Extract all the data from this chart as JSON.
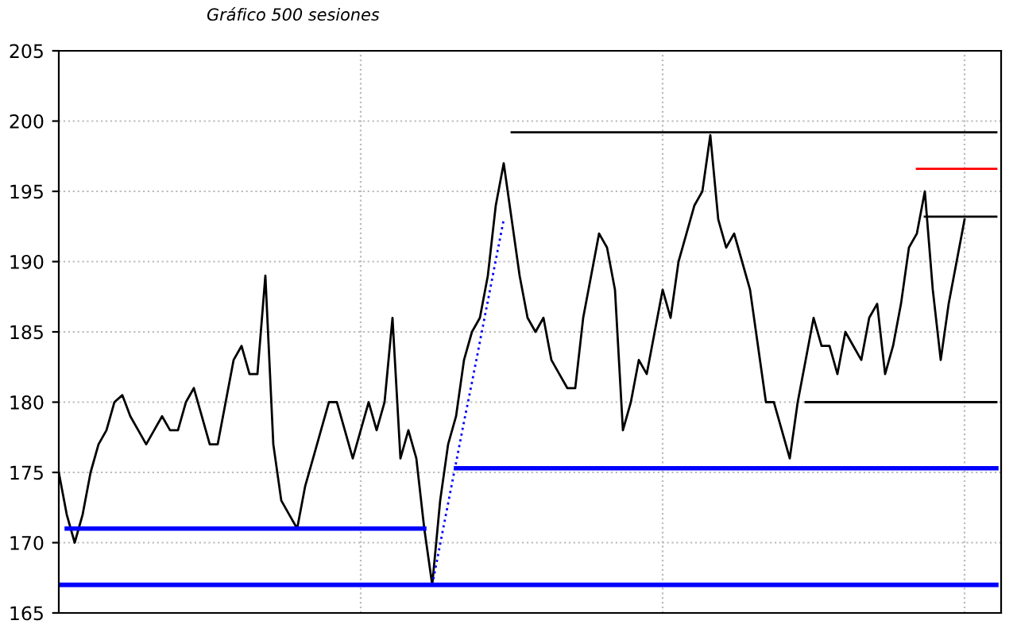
{
  "chart_data": {
    "type": "line",
    "subtitle": "Gráfico 500 sesiones",
    "categories": [
      null,
      null,
      null,
      null,
      null,
      null,
      null,
      null,
      null,
      null,
      null,
      null,
      null,
      null,
      null,
      null,
      null,
      null,
      null,
      null,
      null,
      null,
      null,
      null,
      null,
      null,
      null,
      null,
      null,
      null,
      null,
      null,
      null,
      null,
      null,
      null,
      null,
      null,
      null,
      null,
      null,
      null,
      null,
      null,
      null,
      null,
      null,
      null,
      null,
      null,
      null,
      null,
      null,
      null,
      null,
      null,
      null,
      null,
      null,
      null,
      null,
      null,
      null,
      null,
      null,
      null,
      null,
      null,
      null,
      null,
      null,
      null,
      null,
      null,
      null,
      null,
      null,
      null,
      null,
      null,
      null,
      null,
      null,
      null,
      null,
      null,
      null,
      null,
      null,
      null,
      null,
      null,
      null,
      null,
      null,
      null,
      null,
      null,
      null,
      null,
      null,
      null,
      null,
      null,
      null,
      null,
      null,
      null,
      null,
      null,
      null,
      null,
      null,
      null,
      null,
      null,
      null,
      null,
      null
    ],
    "ylim": [
      165,
      205
    ],
    "yticks": [
      165,
      170,
      175,
      180,
      185,
      190,
      195,
      200,
      205
    ],
    "grid": true,
    "series": [
      {
        "color": "#000000",
        "values": [
          175,
          172,
          170,
          172,
          175,
          177,
          178,
          180,
          180.5,
          179,
          178,
          177,
          178,
          179,
          178,
          178,
          180,
          181,
          179,
          177,
          177,
          180,
          183,
          184,
          182,
          182,
          189,
          177,
          173,
          172,
          171,
          174,
          176,
          178,
          180,
          180,
          178,
          176,
          178,
          180,
          178,
          180,
          186,
          176,
          178,
          176,
          171,
          167,
          173,
          177,
          179,
          183,
          185,
          186,
          189,
          194,
          197,
          193,
          189,
          186,
          185,
          186,
          183,
          182,
          181,
          181,
          186,
          189,
          192,
          191,
          188,
          178,
          180,
          183,
          182,
          185,
          188,
          186,
          190,
          192,
          194,
          195,
          199,
          193,
          191,
          192,
          190,
          188,
          184,
          180,
          180,
          178,
          176,
          180,
          183,
          186,
          184,
          184,
          182,
          185,
          184,
          183,
          186,
          187,
          182,
          184,
          187,
          191,
          192,
          195,
          188,
          183,
          187,
          190,
          193,
          null,
          null,
          null,
          null
        ]
      },
      {
        "color": "#0000ff",
        "values": [
          null,
          171,
          171,
          171,
          171,
          171,
          171,
          171,
          171,
          171,
          171,
          171,
          171,
          171,
          171,
          171,
          171,
          171,
          171,
          171,
          171,
          171,
          171,
          171,
          171,
          171,
          171,
          171,
          171,
          171,
          171,
          171,
          171,
          171,
          171,
          171,
          171,
          171,
          171,
          171,
          171,
          171,
          171,
          171,
          171,
          171,
          171,
          null,
          null,
          null,
          null,
          null,
          null,
          null,
          null,
          null,
          null,
          null,
          null,
          null,
          null,
          null,
          null,
          null,
          null,
          null,
          null,
          null,
          null,
          null,
          null,
          null,
          null,
          null,
          null,
          null,
          null,
          null,
          null,
          null,
          null,
          null,
          null,
          null,
          null,
          null,
          null,
          null,
          null,
          null,
          null,
          null,
          null,
          null,
          null,
          null,
          null,
          null,
          null,
          null,
          null,
          null,
          null,
          null,
          null,
          null,
          null,
          null,
          null,
          null,
          null,
          null,
          null,
          null,
          null,
          null,
          null,
          null,
          null
        ]
      },
      {
        "color": "#0000ff",
        "values": [
          167,
          167,
          167,
          167,
          167,
          167,
          167,
          167,
          167,
          167,
          167,
          167,
          167,
          167,
          167,
          167,
          167,
          167,
          167,
          167,
          167,
          167,
          167,
          167,
          167,
          167,
          167,
          167,
          167,
          167,
          167,
          167,
          167,
          167,
          167,
          167,
          167,
          167,
          167,
          167,
          167,
          167,
          167,
          167,
          167,
          167,
          167,
          167,
          167,
          167,
          167,
          167,
          167,
          167,
          167,
          167,
          167,
          167,
          167,
          167,
          167,
          167,
          167,
          167,
          167,
          167,
          167,
          167,
          167,
          167,
          167,
          167,
          167,
          167,
          167,
          167,
          167,
          167,
          167,
          167,
          167,
          167,
          167,
          167,
          167,
          167,
          167,
          167,
          167,
          167,
          167,
          167,
          167,
          167,
          167,
          167,
          167,
          167,
          167,
          167,
          167,
          167,
          167,
          167,
          167,
          167,
          167,
          167,
          167,
          167,
          167,
          167,
          167,
          167,
          167,
          167,
          167,
          167,
          167
        ]
      },
      {
        "color": "#0000ff",
        "values": [
          null,
          null,
          null,
          null,
          null,
          null,
          null,
          null,
          null,
          null,
          null,
          null,
          null,
          null,
          null,
          null,
          null,
          null,
          null,
          null,
          null,
          null,
          null,
          null,
          null,
          null,
          null,
          null,
          null,
          null,
          null,
          null,
          null,
          null,
          null,
          null,
          null,
          null,
          null,
          null,
          null,
          null,
          null,
          null,
          null,
          null,
          null,
          null,
          null,
          null,
          175.3,
          175.3,
          175.3,
          175.3,
          175.3,
          175.3,
          175.3,
          175.3,
          175.3,
          175.3,
          175.3,
          175.3,
          175.3,
          175.3,
          175.3,
          175.3,
          175.3,
          175.3,
          175.3,
          175.3,
          175.3,
          175.3,
          175.3,
          175.3,
          175.3,
          175.3,
          175.3,
          175.3,
          175.3,
          175.3,
          175.3,
          175.3,
          175.3,
          175.3,
          175.3,
          175.3,
          175.3,
          175.3,
          175.3,
          175.3,
          175.3,
          175.3,
          175.3,
          175.3,
          175.3,
          175.3,
          175.3,
          175.3,
          175.3,
          175.3,
          175.3,
          175.3,
          175.3,
          175.3,
          175.3,
          175.3,
          175.3,
          175.3,
          175.3,
          175.3,
          175.3,
          175.3,
          175.3,
          175.3,
          175.3,
          175.3,
          175.3,
          175.3,
          175.3
        ]
      },
      {
        "color": "#0000ff",
        "line_style": "dotted",
        "values": [
          null,
          null,
          null,
          null,
          null,
          null,
          null,
          null,
          null,
          null,
          null,
          null,
          null,
          null,
          null,
          null,
          null,
          null,
          null,
          null,
          null,
          null,
          null,
          null,
          null,
          null,
          null,
          null,
          null,
          null,
          null,
          null,
          null,
          null,
          null,
          null,
          null,
          null,
          null,
          null,
          null,
          null,
          null,
          null,
          null,
          null,
          null,
          167,
          169.9,
          172.8,
          175.7,
          178.6,
          181.4,
          184.3,
          187.2,
          190.1,
          193,
          null,
          null,
          null,
          null,
          null,
          null,
          null,
          null,
          null,
          null,
          null,
          null,
          null,
          null,
          null,
          null,
          null,
          null,
          null,
          null,
          null,
          null,
          null,
          null,
          null,
          null,
          null,
          null,
          null,
          null,
          null,
          null,
          null,
          null,
          null,
          null,
          null,
          null,
          null,
          null,
          null,
          null,
          null,
          null,
          null,
          null,
          null,
          null,
          null,
          null,
          null,
          null,
          null,
          null,
          null,
          null,
          null,
          null,
          null,
          null,
          null,
          null
        ]
      },
      {
        "color": "#000000",
        "values": [
          null,
          null,
          null,
          null,
          null,
          null,
          null,
          null,
          null,
          null,
          null,
          null,
          null,
          null,
          null,
          null,
          null,
          null,
          null,
          null,
          null,
          null,
          null,
          null,
          null,
          null,
          null,
          null,
          null,
          null,
          null,
          null,
          null,
          null,
          null,
          null,
          null,
          null,
          null,
          null,
          null,
          null,
          null,
          null,
          null,
          null,
          null,
          null,
          null,
          null,
          null,
          null,
          null,
          null,
          null,
          null,
          null,
          199.2,
          199.2,
          199.2,
          199.2,
          199.2,
          199.2,
          199.2,
          199.2,
          199.2,
          199.2,
          199.2,
          199.2,
          199.2,
          199.2,
          199.2,
          199.2,
          199.2,
          199.2,
          199.2,
          199.2,
          199.2,
          199.2,
          199.2,
          199.2,
          199.2,
          199.2,
          199.2,
          199.2,
          199.2,
          199.2,
          199.2,
          199.2,
          199.2,
          199.2,
          199.2,
          199.2,
          199.2,
          199.2,
          199.2,
          199.2,
          199.2,
          199.2,
          199.2,
          199.2,
          199.2,
          199.2,
          199.2,
          199.2,
          199.2,
          199.2,
          199.2,
          199.2,
          199.2,
          199.2,
          199.2,
          199.2,
          199.2,
          199.2,
          199.2,
          199.2,
          199.2,
          199.2
        ]
      },
      {
        "color": "#ff0000",
        "values": [
          null,
          null,
          null,
          null,
          null,
          null,
          null,
          null,
          null,
          null,
          null,
          null,
          null,
          null,
          null,
          null,
          null,
          null,
          null,
          null,
          null,
          null,
          null,
          null,
          null,
          null,
          null,
          null,
          null,
          null,
          null,
          null,
          null,
          null,
          null,
          null,
          null,
          null,
          null,
          null,
          null,
          null,
          null,
          null,
          null,
          null,
          null,
          null,
          null,
          null,
          null,
          null,
          null,
          null,
          null,
          null,
          null,
          null,
          null,
          null,
          null,
          null,
          null,
          null,
          null,
          null,
          null,
          null,
          null,
          null,
          null,
          null,
          null,
          null,
          null,
          null,
          null,
          null,
          null,
          null,
          null,
          null,
          null,
          null,
          null,
          null,
          null,
          null,
          null,
          null,
          null,
          null,
          null,
          null,
          null,
          null,
          null,
          null,
          null,
          null,
          null,
          null,
          null,
          null,
          null,
          null,
          null,
          null,
          196.6,
          196.6,
          196.6,
          196.6,
          196.6,
          196.6,
          196.6,
          196.6,
          196.6,
          196.6,
          196.6
        ]
      },
      {
        "color": "#000000",
        "values": [
          null,
          null,
          null,
          null,
          null,
          null,
          null,
          null,
          null,
          null,
          null,
          null,
          null,
          null,
          null,
          null,
          null,
          null,
          null,
          null,
          null,
          null,
          null,
          null,
          null,
          null,
          null,
          null,
          null,
          null,
          null,
          null,
          null,
          null,
          null,
          null,
          null,
          null,
          null,
          null,
          null,
          null,
          null,
          null,
          null,
          null,
          null,
          null,
          null,
          null,
          null,
          null,
          null,
          null,
          null,
          null,
          null,
          null,
          null,
          null,
          null,
          null,
          null,
          null,
          null,
          null,
          null,
          null,
          null,
          null,
          null,
          null,
          null,
          null,
          null,
          null,
          null,
          null,
          null,
          null,
          null,
          null,
          null,
          null,
          null,
          null,
          null,
          null,
          null,
          null,
          null,
          null,
          null,
          null,
          null,
          null,
          null,
          null,
          null,
          null,
          null,
          null,
          null,
          null,
          null,
          null,
          null,
          null,
          null,
          193.2,
          193.2,
          193.2,
          193.2,
          193.2,
          193.2,
          193.2,
          193.2,
          193.2,
          193.2
        ]
      },
      {
        "color": "#000000",
        "values": [
          null,
          null,
          null,
          null,
          null,
          null,
          null,
          null,
          null,
          null,
          null,
          null,
          null,
          null,
          null,
          null,
          null,
          null,
          null,
          null,
          null,
          null,
          null,
          null,
          null,
          null,
          null,
          null,
          null,
          null,
          null,
          null,
          null,
          null,
          null,
          null,
          null,
          null,
          null,
          null,
          null,
          null,
          null,
          null,
          null,
          null,
          null,
          null,
          null,
          null,
          null,
          null,
          null,
          null,
          null,
          null,
          null,
          null,
          null,
          null,
          null,
          null,
          null,
          null,
          null,
          null,
          null,
          null,
          null,
          null,
          null,
          null,
          null,
          null,
          null,
          null,
          null,
          null,
          null,
          null,
          null,
          null,
          null,
          null,
          null,
          null,
          null,
          null,
          null,
          null,
          null,
          null,
          null,
          null,
          180,
          180,
          180,
          180,
          180,
          180,
          180,
          180,
          180,
          180,
          180,
          180,
          180,
          180,
          180,
          180,
          180,
          180,
          180,
          180,
          180,
          180,
          180,
          180,
          180
        ]
      }
    ]
  }
}
